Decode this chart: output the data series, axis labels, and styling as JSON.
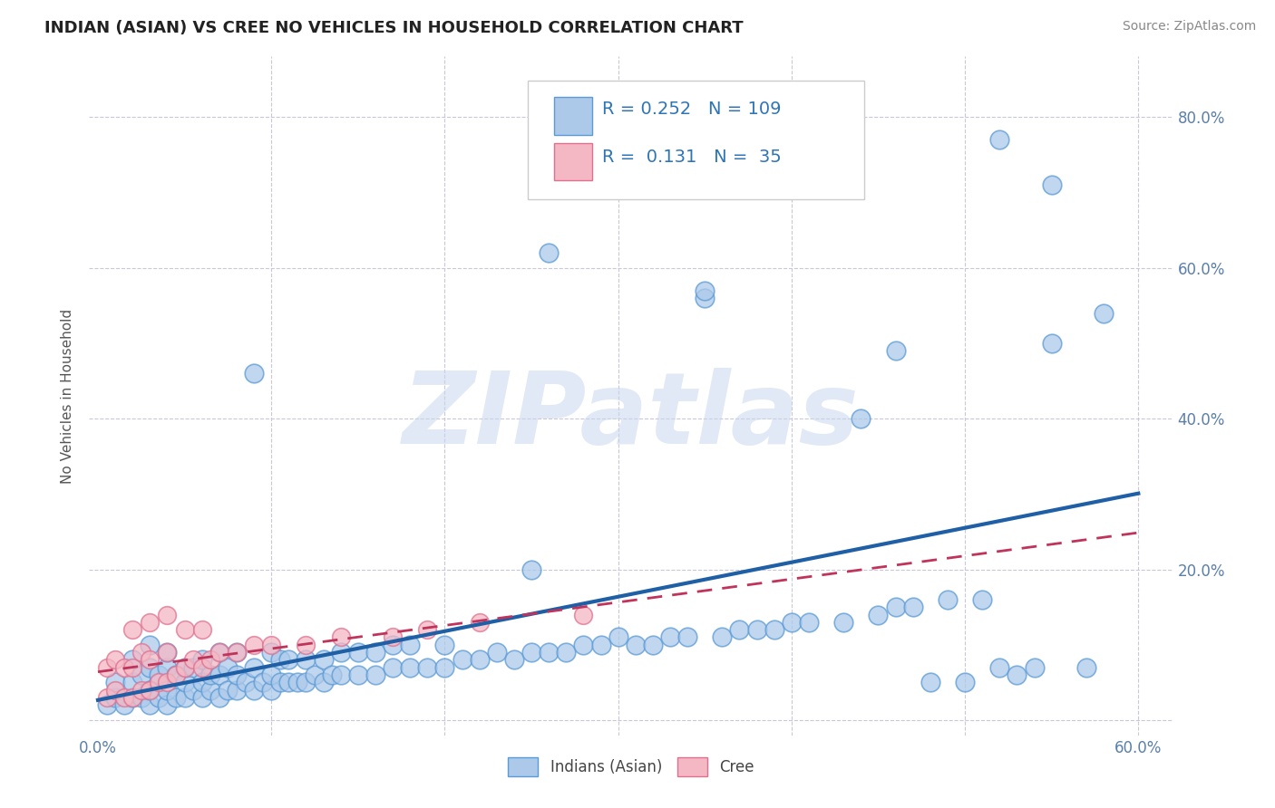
{
  "title": "INDIAN (ASIAN) VS CREE NO VEHICLES IN HOUSEHOLD CORRELATION CHART",
  "source": "Source: ZipAtlas.com",
  "ylabel": "No Vehicles in Household",
  "xlim": [
    -0.005,
    0.62
  ],
  "ylim": [
    -0.02,
    0.88
  ],
  "xtick_vals": [
    0.0,
    0.1,
    0.2,
    0.3,
    0.4,
    0.5,
    0.6
  ],
  "xticklabels": [
    "0.0%",
    "",
    "",
    "",
    "",
    "",
    "60.0%"
  ],
  "ytick_vals": [
    0.0,
    0.2,
    0.4,
    0.6,
    0.8
  ],
  "yticklabels": [
    "",
    "20.0%",
    "40.0%",
    "60.0%",
    "80.0%"
  ],
  "blue_face": "#adc9ea",
  "blue_edge": "#5b9bd5",
  "pink_face": "#f4b8c4",
  "pink_edge": "#e07090",
  "blue_line_color": "#1f5fa6",
  "pink_line_color": "#c0335a",
  "legend_R_blue": "0.252",
  "legend_N_blue": "109",
  "legend_R_pink": "0.131",
  "legend_N_pink": "35",
  "watermark": "ZIPatlas",
  "blue_x": [
    0.005,
    0.01,
    0.01,
    0.015,
    0.02,
    0.02,
    0.02,
    0.025,
    0.025,
    0.03,
    0.03,
    0.03,
    0.03,
    0.035,
    0.035,
    0.04,
    0.04,
    0.04,
    0.04,
    0.045,
    0.045,
    0.05,
    0.05,
    0.05,
    0.055,
    0.055,
    0.06,
    0.06,
    0.06,
    0.065,
    0.065,
    0.07,
    0.07,
    0.07,
    0.075,
    0.075,
    0.08,
    0.08,
    0.08,
    0.085,
    0.09,
    0.09,
    0.095,
    0.1,
    0.1,
    0.1,
    0.105,
    0.105,
    0.11,
    0.11,
    0.115,
    0.12,
    0.12,
    0.125,
    0.13,
    0.13,
    0.135,
    0.14,
    0.14,
    0.15,
    0.15,
    0.16,
    0.16,
    0.17,
    0.17,
    0.18,
    0.18,
    0.19,
    0.2,
    0.2,
    0.21,
    0.22,
    0.23,
    0.24,
    0.25,
    0.25,
    0.26,
    0.27,
    0.28,
    0.29,
    0.3,
    0.31,
    0.32,
    0.33,
    0.34,
    0.35,
    0.36,
    0.37,
    0.38,
    0.39,
    0.4,
    0.41,
    0.43,
    0.44,
    0.45,
    0.46,
    0.47,
    0.48,
    0.49,
    0.5,
    0.51,
    0.52,
    0.53,
    0.54,
    0.55,
    0.57,
    0.58
  ],
  "blue_y": [
    0.02,
    0.03,
    0.05,
    0.02,
    0.03,
    0.05,
    0.08,
    0.03,
    0.06,
    0.02,
    0.04,
    0.07,
    0.1,
    0.03,
    0.06,
    0.02,
    0.04,
    0.07,
    0.09,
    0.03,
    0.06,
    0.03,
    0.05,
    0.07,
    0.04,
    0.07,
    0.03,
    0.05,
    0.08,
    0.04,
    0.06,
    0.03,
    0.06,
    0.09,
    0.04,
    0.07,
    0.04,
    0.06,
    0.09,
    0.05,
    0.04,
    0.07,
    0.05,
    0.04,
    0.06,
    0.09,
    0.05,
    0.08,
    0.05,
    0.08,
    0.05,
    0.05,
    0.08,
    0.06,
    0.05,
    0.08,
    0.06,
    0.06,
    0.09,
    0.06,
    0.09,
    0.06,
    0.09,
    0.07,
    0.1,
    0.07,
    0.1,
    0.07,
    0.07,
    0.1,
    0.08,
    0.08,
    0.09,
    0.08,
    0.09,
    0.2,
    0.09,
    0.09,
    0.1,
    0.1,
    0.11,
    0.1,
    0.1,
    0.11,
    0.11,
    0.56,
    0.11,
    0.12,
    0.12,
    0.12,
    0.13,
    0.13,
    0.13,
    0.4,
    0.14,
    0.15,
    0.15,
    0.05,
    0.16,
    0.05,
    0.16,
    0.07,
    0.06,
    0.07,
    0.5,
    0.07,
    0.54
  ],
  "blue_outlier_x": [
    0.09,
    0.26,
    0.35,
    0.46,
    0.52,
    0.55
  ],
  "blue_outlier_y": [
    0.46,
    0.62,
    0.57,
    0.49,
    0.77,
    0.71
  ],
  "pink_x": [
    0.005,
    0.005,
    0.01,
    0.01,
    0.015,
    0.015,
    0.02,
    0.02,
    0.02,
    0.025,
    0.025,
    0.03,
    0.03,
    0.03,
    0.035,
    0.04,
    0.04,
    0.04,
    0.045,
    0.05,
    0.05,
    0.055,
    0.06,
    0.06,
    0.065,
    0.07,
    0.08,
    0.09,
    0.1,
    0.12,
    0.14,
    0.17,
    0.19,
    0.22,
    0.28
  ],
  "pink_y": [
    0.03,
    0.07,
    0.04,
    0.08,
    0.03,
    0.07,
    0.03,
    0.07,
    0.12,
    0.04,
    0.09,
    0.04,
    0.08,
    0.13,
    0.05,
    0.05,
    0.09,
    0.14,
    0.06,
    0.07,
    0.12,
    0.08,
    0.07,
    0.12,
    0.08,
    0.09,
    0.09,
    0.1,
    0.1,
    0.1,
    0.11,
    0.11,
    0.12,
    0.13,
    0.14
  ]
}
